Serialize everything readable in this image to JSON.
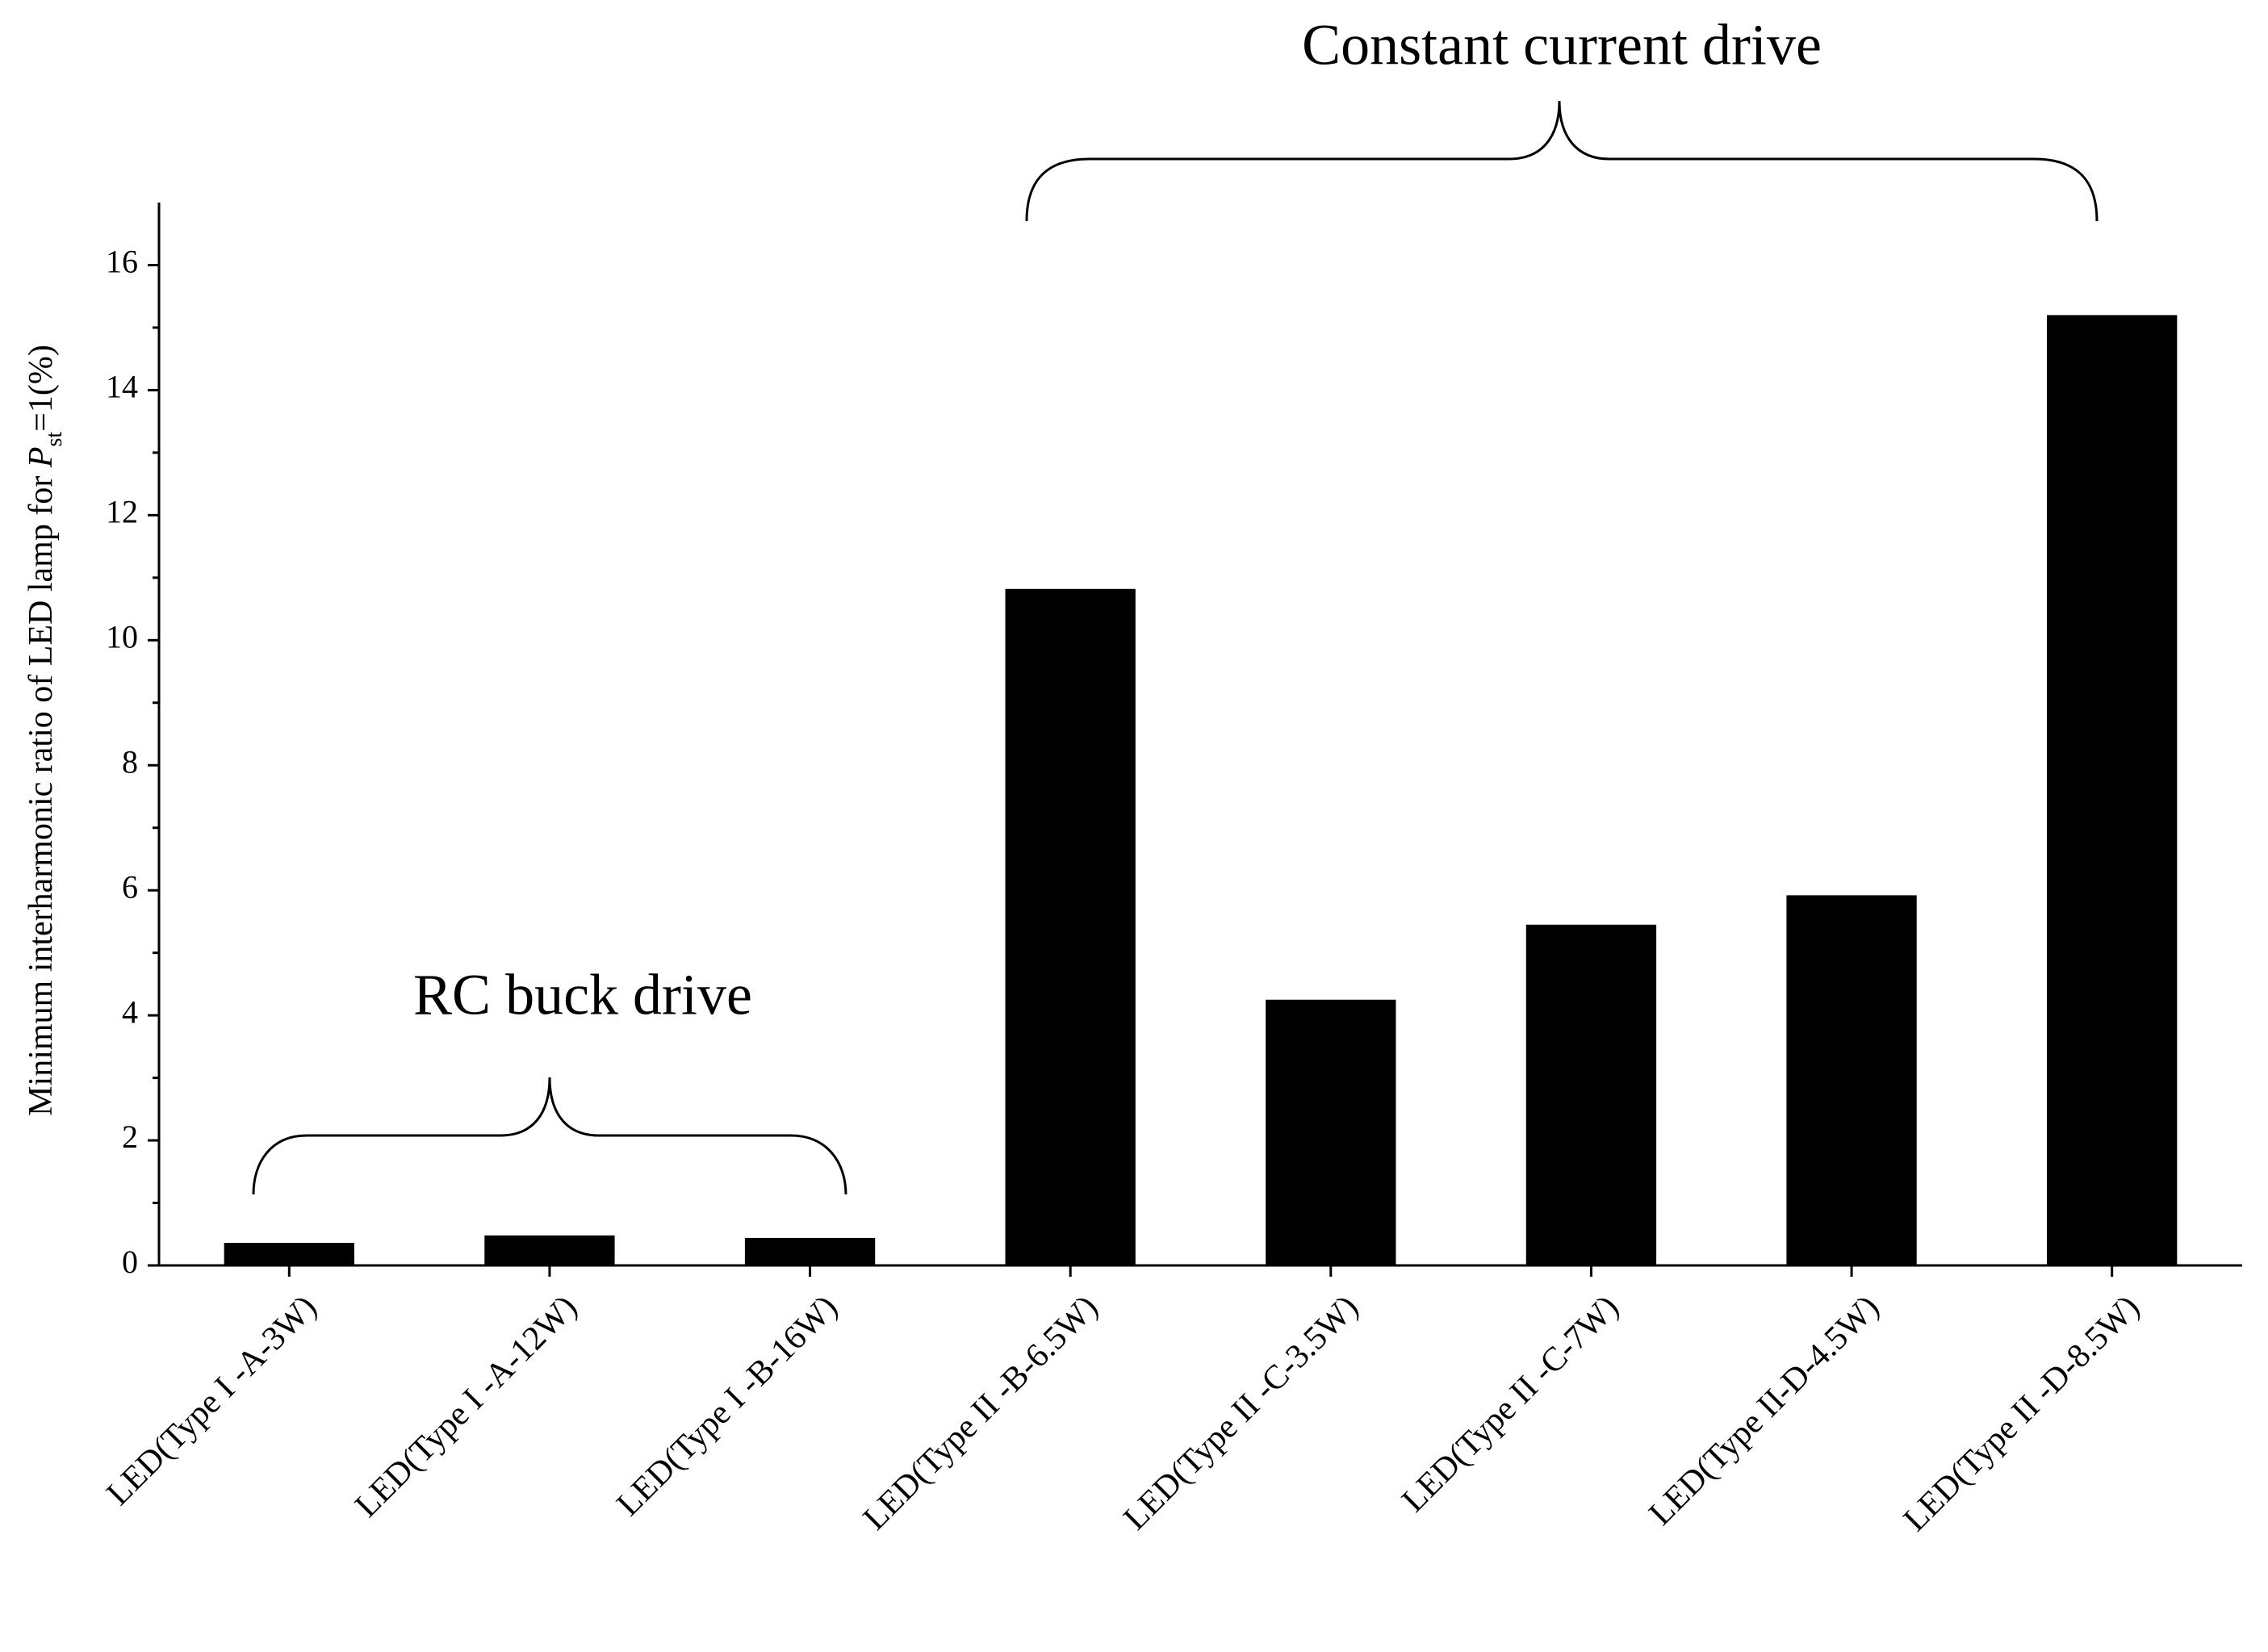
{
  "chart_data": {
    "type": "bar",
    "y_label_parts": [
      "Minimum interharmonic ratio of LED lamp for ",
      "P",
      "st",
      "=1(%)"
    ],
    "annotations": [
      "Constant current drive",
      "RC buck drive"
    ],
    "categories": [
      "LED(Type I -A-3W)",
      "LED(Type I -A-12W)",
      "LED(Type I -B-16W)",
      "LED(Type II -B-6.5W)",
      "LED(Type II -C-3.5W)",
      "LED(Type II -C-7W)",
      "LED(Type II-D-4.5W)",
      "LED(Type II -D-8.5W)"
    ],
    "values": [
      0.36,
      0.48,
      0.44,
      10.82,
      4.25,
      5.45,
      5.92,
      15.2
    ],
    "color": "#000000",
    "ylim": [
      0,
      17
    ],
    "yticks": [
      0,
      2,
      4,
      6,
      8,
      10,
      12,
      14,
      16
    ],
    "y_minor_ticks": [
      1,
      3,
      5,
      7,
      9,
      11,
      13,
      15
    ],
    "grid": false
  }
}
